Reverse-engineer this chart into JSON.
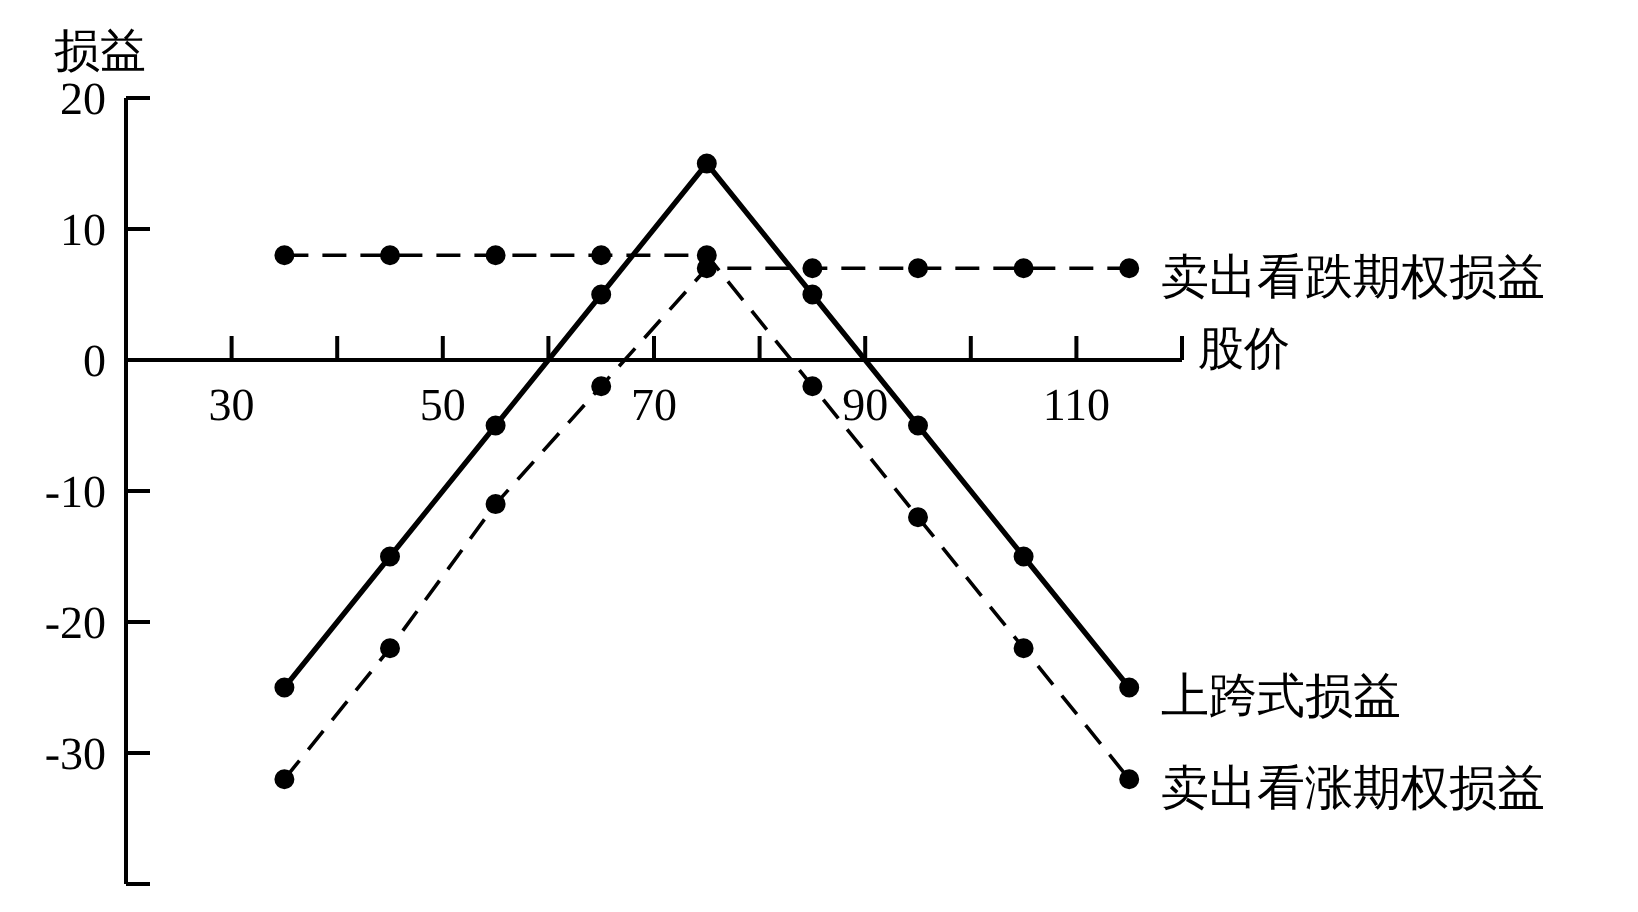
{
  "chart_data": {
    "type": "line",
    "xlabel": "股价",
    "ylabel": "损益",
    "x": [
      35,
      45,
      55,
      65,
      75,
      85,
      95,
      105,
      115
    ],
    "series": [
      {
        "name": "上跨式损益",
        "color": "#000000",
        "line_style": "solid",
        "values": [
          -25,
          -15,
          -5,
          5,
          15,
          5,
          -5,
          -15,
          -25
        ]
      },
      {
        "name": "卖出看跌期权损益",
        "color": "#000000",
        "line_style": "dashed",
        "values": [
          -32,
          -22,
          -11,
          -2,
          7,
          7,
          7,
          7,
          7
        ]
      },
      {
        "name": "卖出看涨期权损益",
        "color": "#000000",
        "line_style": "dashed",
        "values": [
          8,
          8,
          8,
          8,
          8,
          -2,
          -12,
          -22,
          -32
        ]
      }
    ],
    "xlim": [
      20,
      120
    ],
    "xticks": [
      30,
      {
        "value": 40,
        "label": null
      },
      50,
      {
        "value": 60,
        "label": null
      },
      70,
      {
        "value": 80,
        "label": null
      },
      90,
      {
        "value": 100,
        "label": null
      },
      110,
      {
        "value": 120,
        "label": null
      }
    ],
    "ylim": [
      -40,
      20
    ],
    "yticks": [
      {
        "value": -40,
        "label": null
      },
      -30,
      -20,
      -10,
      0,
      10,
      20
    ],
    "marker": "circle"
  }
}
